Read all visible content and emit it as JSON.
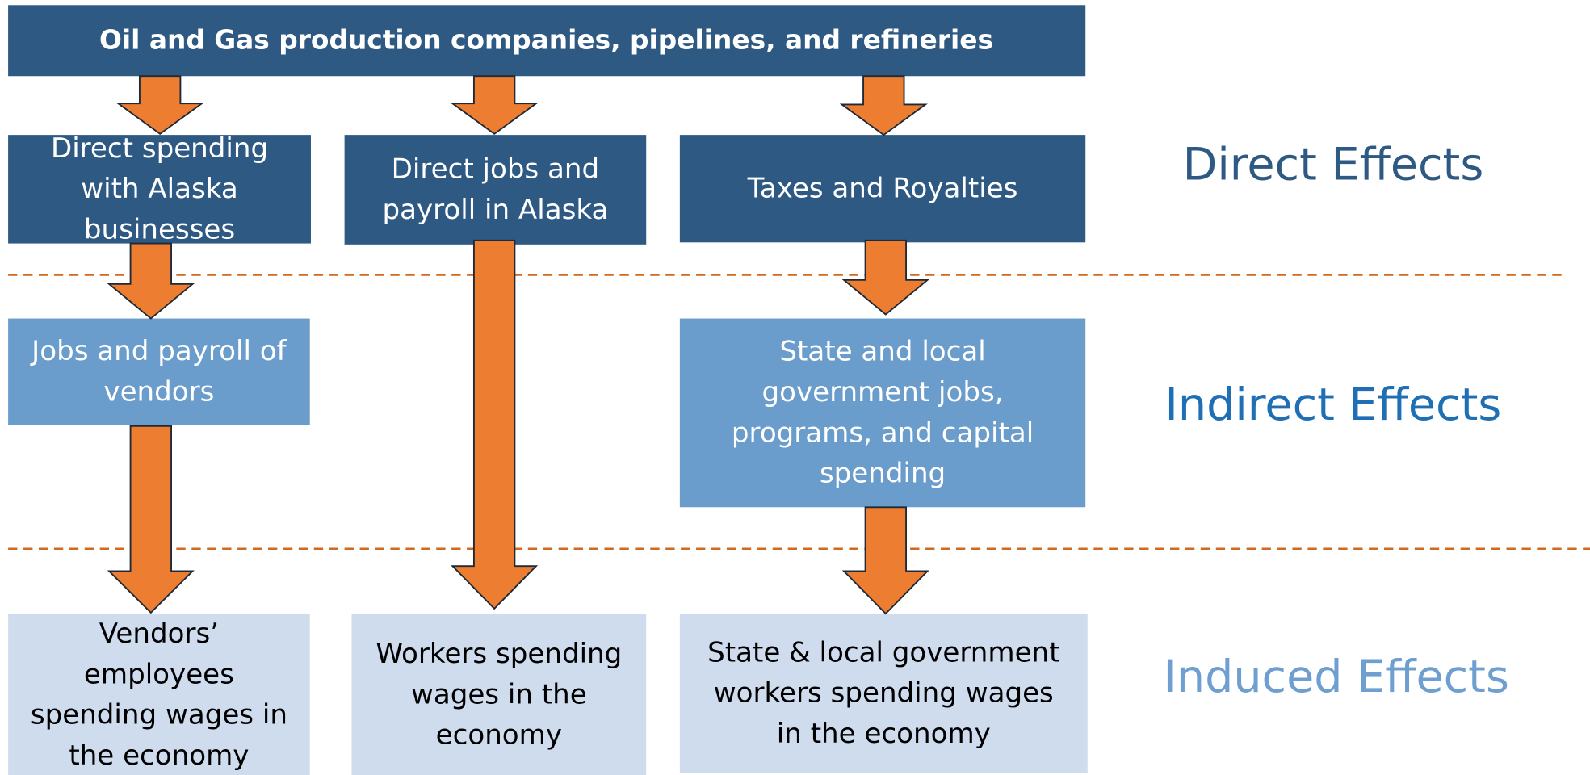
{
  "header": {
    "title": "Oil and Gas production companies, pipelines, and refineries"
  },
  "nodes": [
    {
      "lines": [
        "Direct spending",
        "with Alaska",
        "businesses"
      ]
    },
    {
      "lines": [
        "Direct jobs and",
        "payroll in Alaska"
      ]
    },
    {
      "lines": [
        "Taxes and Royalties"
      ]
    },
    {
      "lines": [
        "Jobs and payroll of",
        "vendors"
      ]
    },
    {
      "lines": [
        "State and local",
        "government jobs,",
        "programs, and capital",
        "spending"
      ]
    },
    {
      "lines": [
        "Vendors’",
        "employees",
        "spending wages in",
        "the economy"
      ]
    },
    {
      "lines": [
        "Workers spending",
        "wages in the",
        "economy"
      ]
    },
    {
      "lines": [
        "State & local government",
        "workers spending wages",
        "in the economy"
      ]
    }
  ],
  "levels": [
    "Direct Effects",
    "Indirect Effects",
    "Induced Effects"
  ]
}
